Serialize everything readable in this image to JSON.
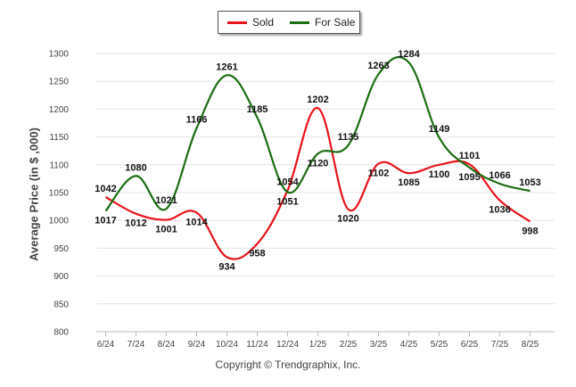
{
  "legend": {
    "sold_label": "Sold",
    "forsale_label": "For Sale"
  },
  "ylabel": "Average Price (in $ ,000)",
  "credit": "Copyright © Trendgraphix, Inc.",
  "colors": {
    "sold": "#e8141b",
    "for_sale": "#1b6e12",
    "grid": "#e4e4e4"
  },
  "chart_data": {
    "type": "line",
    "categories": [
      "6/24",
      "7/24",
      "8/24",
      "9/24",
      "10/24",
      "11/24",
      "12/24",
      "1/25",
      "2/25",
      "3/25",
      "4/25",
      "5/25",
      "6/25",
      "7/25",
      "8/25"
    ],
    "series": [
      {
        "name": "Sold",
        "values": [
          1042,
          1012,
          1001,
          1014,
          934,
          958,
          1054,
          1202,
          1020,
          1102,
          1085,
          1100,
          1101,
          1036,
          998
        ]
      },
      {
        "name": "For Sale",
        "values": [
          1017,
          1080,
          1021,
          1166,
          1261,
          1185,
          1051,
          1120,
          1135,
          1263,
          1284,
          1149,
          1095,
          1066,
          1053
        ]
      }
    ],
    "xlabel": "",
    "ylabel": "Average Price (in $ ,000)",
    "ylim": [
      800,
      1300
    ],
    "yticks": [
      800,
      850,
      900,
      950,
      1000,
      1050,
      1100,
      1150,
      1200,
      1250,
      1300
    ],
    "grid": true,
    "legend_position": "top-center"
  }
}
